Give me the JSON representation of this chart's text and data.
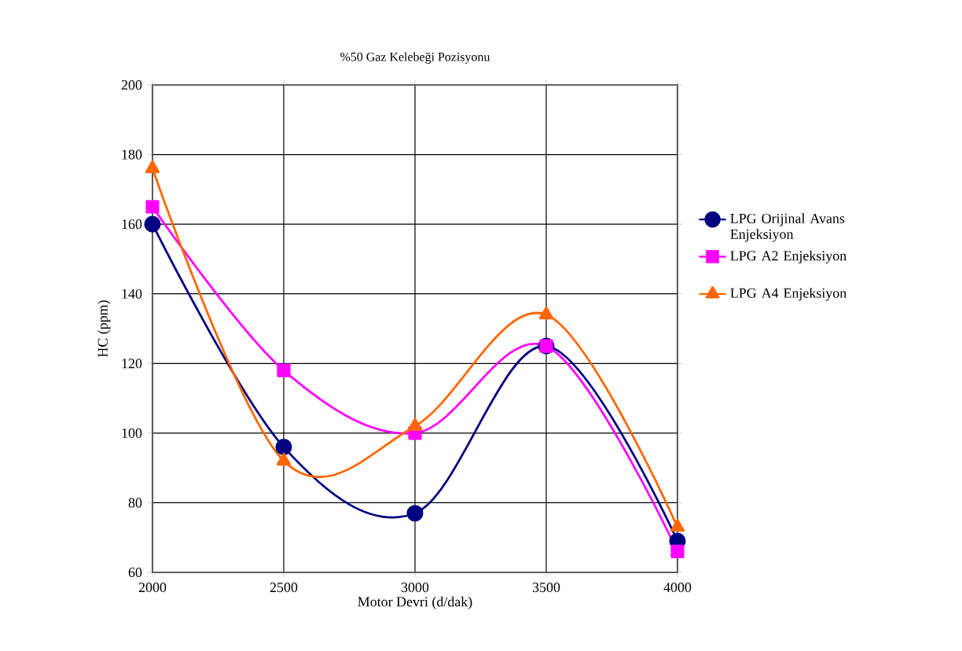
{
  "chart_data": {
    "type": "line",
    "title": "%50 Gaz Kelebeği Pozisyonu",
    "xlabel": "Motor Devri (d/dak)",
    "ylabel": "HC (ppm)",
    "x": [
      2000,
      2500,
      3000,
      3500,
      4000
    ],
    "series": [
      {
        "name": "LPG Orijinal Avans Enjeksiyon",
        "color": "#000080",
        "marker": "circle",
        "values": [
          160,
          96,
          77,
          125,
          69
        ]
      },
      {
        "name": "LPG A2 Enjeksiyon",
        "color": "#ff00ff",
        "marker": "square",
        "values": [
          165,
          118,
          100,
          125,
          66
        ]
      },
      {
        "name": "LPG A4 Enjeksiyon",
        "color": "#ff6600",
        "marker": "triangle",
        "values": [
          176,
          92,
          102,
          134,
          73
        ]
      }
    ],
    "xlim": [
      2000,
      4000
    ],
    "xticks": [
      2000,
      2500,
      3000,
      3500,
      4000
    ],
    "ylim": [
      60,
      200
    ],
    "yticks": [
      60,
      80,
      100,
      120,
      140,
      160,
      180,
      200
    ],
    "grid": true,
    "legend": "right"
  }
}
